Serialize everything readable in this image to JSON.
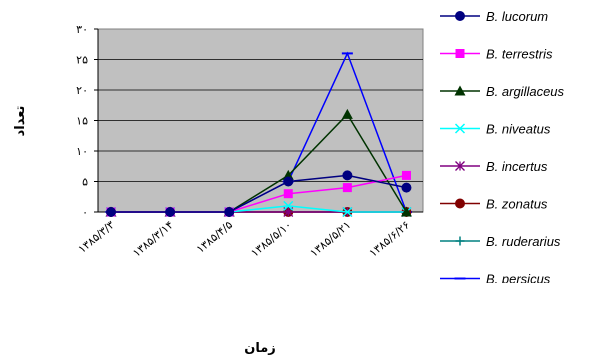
{
  "chart_data": {
    "type": "line",
    "title": "",
    "xlabel": "زمان",
    "ylabel": "تعداد",
    "categories": [
      "۱۳۸۵/۳/۳",
      "۱۳۸۵/۳/۱۴",
      "۱۳۸۵/۴/۵",
      "۱۳۸۵/۵/۱۰",
      "۱۳۸۵/۵/۲۱",
      "۱۳۸۵/۶/۲۶"
    ],
    "y_tick_labels": [
      "۰",
      "۵",
      "۱۰",
      "۱۵",
      "۲۰",
      "۲۵",
      "۳۰"
    ],
    "ylim": [
      0,
      30
    ],
    "grid": true,
    "legend_position": "right",
    "plot_background": "#c0c0c0",
    "series": [
      {
        "name": "B. lucorum",
        "color": "#000080",
        "marker": "circle",
        "values": [
          0,
          0,
          0,
          5,
          6,
          4
        ]
      },
      {
        "name": "B. terrestris",
        "color": "#ff00ff",
        "marker": "square",
        "values": [
          0,
          0,
          0,
          3,
          4,
          6
        ]
      },
      {
        "name": "B. argillaceus",
        "color": "#003300",
        "marker": "triangle",
        "values": [
          0,
          0,
          0,
          6,
          16,
          0
        ]
      },
      {
        "name": "B. niveatus",
        "color": "#00ffff",
        "marker": "x",
        "values": [
          0,
          0,
          0,
          1,
          0,
          0
        ]
      },
      {
        "name": "B. incertus",
        "color": "#800080",
        "marker": "star",
        "values": [
          0,
          0,
          0,
          0,
          0,
          0
        ]
      },
      {
        "name": "B. zonatus",
        "color": "#800000",
        "marker": "circle",
        "values": [
          0,
          0,
          0,
          0,
          0,
          0
        ]
      },
      {
        "name": "B. ruderarius",
        "color": "#008080",
        "marker": "plus",
        "values": [
          0,
          0,
          0,
          0,
          0,
          0
        ]
      },
      {
        "name": "B. persicus",
        "color": "#0000ff",
        "marker": "dash",
        "values": [
          0,
          0,
          0,
          5,
          26,
          0
        ]
      }
    ]
  }
}
